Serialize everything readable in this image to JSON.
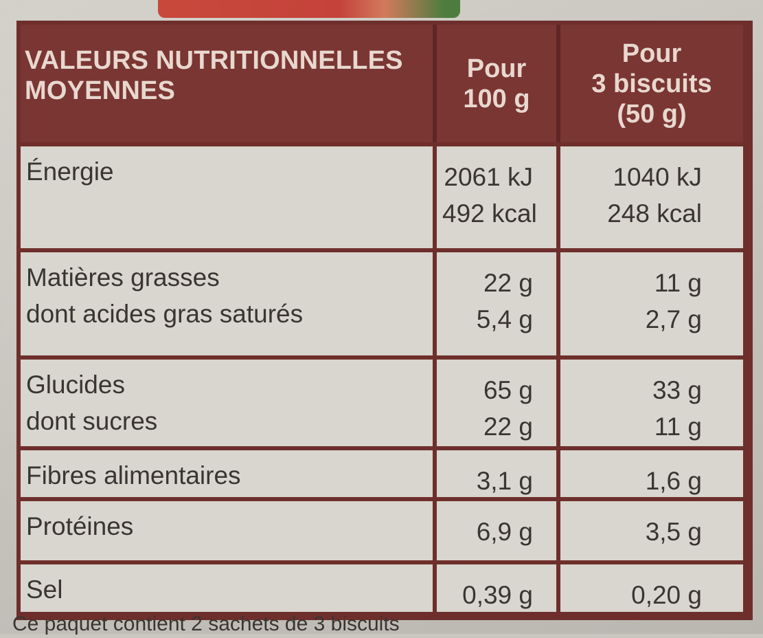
{
  "table": {
    "header": {
      "title_line1": "VALEURS NUTRITIONNELLES",
      "title_line2": "MOYENNES",
      "col1": [
        "Pour",
        "100 g"
      ],
      "col2": [
        "Pour",
        "3 biscuits",
        "(50 g)"
      ]
    },
    "rows": [
      {
        "labels": [
          "Énergie"
        ],
        "col1": [
          "2061 kJ",
          "492 kcal"
        ],
        "col2": [
          "1040 kJ",
          "248 kcal"
        ]
      },
      {
        "labels": [
          "Matières grasses",
          "dont acides gras saturés"
        ],
        "col1": [
          "22 g",
          "5,4 g"
        ],
        "col2": [
          "11 g",
          "2,7 g"
        ]
      },
      {
        "labels": [
          "Glucides",
          "dont sucres"
        ],
        "col1": [
          "65 g",
          "22 g"
        ],
        "col2": [
          "33 g",
          "11 g"
        ]
      },
      {
        "labels": [
          "Fibres alimentaires"
        ],
        "col1": [
          "3,1 g"
        ],
        "col2": [
          "1,6 g"
        ]
      },
      {
        "labels": [
          "Protéines"
        ],
        "col1": [
          "6,9 g"
        ],
        "col2": [
          "3,5 g"
        ]
      },
      {
        "labels": [
          "Sel"
        ],
        "col1": [
          "0,39 g"
        ],
        "col2": [
          "0,20 g"
        ]
      }
    ]
  },
  "footer": "Ce paquet contient 2 sachets de 3 biscuits"
}
